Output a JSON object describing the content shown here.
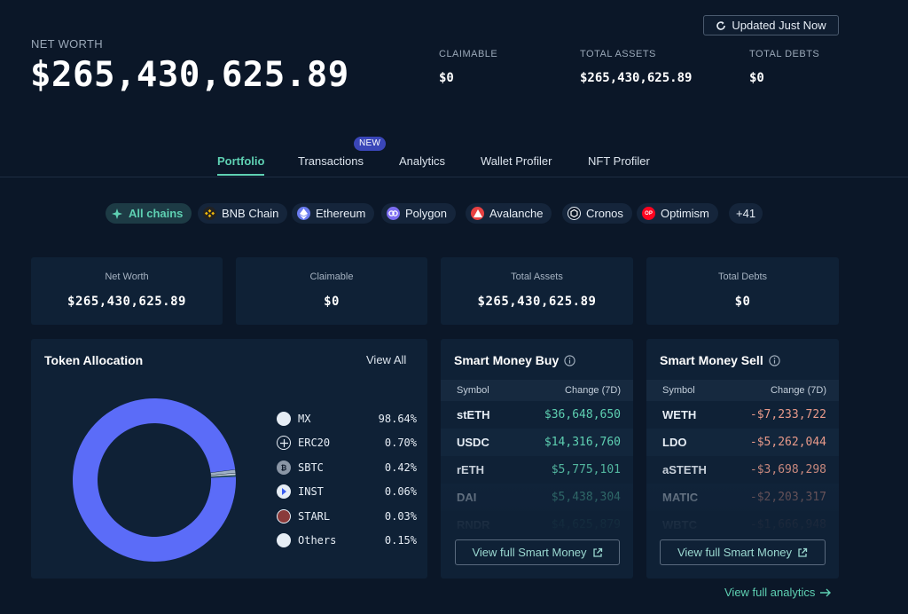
{
  "header": {
    "net_worth_label": "NET WORTH",
    "net_worth_value": "$265,430,625.89",
    "updated_label": "Updated Just Now",
    "stats": [
      {
        "label": "CLAIMABLE",
        "value": "$0"
      },
      {
        "label": "TOTAL ASSETS",
        "value": "$265,430,625.89"
      },
      {
        "label": "TOTAL DEBTS",
        "value": "$0"
      }
    ]
  },
  "tabs": {
    "items": [
      "Portfolio",
      "Transactions",
      "Analytics",
      "Wallet Profiler",
      "NFT Profiler"
    ],
    "active": "Portfolio",
    "new_badge": "NEW"
  },
  "chains": {
    "items": [
      "All chains",
      "BNB Chain",
      "Ethereum",
      "Polygon",
      "Avalanche",
      "Cronos",
      "Optimism"
    ],
    "more": "+41",
    "colors": {
      "all": "#5ed0b2",
      "bnb": "#f0b90b",
      "ethereum": "#6b7cf0",
      "polygon": "#7b6cf0",
      "avalanche": "#e84142",
      "cronos": "#0b1728",
      "optimism": "#ff0420"
    }
  },
  "summary": [
    {
      "label": "Net Worth",
      "value": "$265,430,625.89"
    },
    {
      "label": "Claimable",
      "value": "$0"
    },
    {
      "label": "Total Assets",
      "value": "$265,430,625.89"
    },
    {
      "label": "Total Debts",
      "value": "$0"
    }
  ],
  "allocation": {
    "title": "Token Allocation",
    "view_all": "View All",
    "main_color": "#5b6cf8",
    "tokens": [
      {
        "symbol": "MX",
        "pct": "98.64%",
        "value": 98.64
      },
      {
        "symbol": "ERC20",
        "pct": "0.70%",
        "value": 0.7
      },
      {
        "symbol": "SBTC",
        "pct": "0.42%",
        "value": 0.42
      },
      {
        "symbol": "INST",
        "pct": "0.06%",
        "value": 0.06
      },
      {
        "symbol": "STARL",
        "pct": "0.03%",
        "value": 0.03
      },
      {
        "symbol": "Others",
        "pct": "0.15%",
        "value": 0.15
      }
    ]
  },
  "smart_buy": {
    "title": "Smart Money Buy",
    "col_symbol": "Symbol",
    "col_change": "Change (7D)",
    "positive_color": "#5ed0b2",
    "rows": [
      {
        "symbol": "stETH",
        "change": "$36,648,650"
      },
      {
        "symbol": "USDC",
        "change": "$14,316,760"
      },
      {
        "symbol": "rETH",
        "change": "$5,775,101"
      },
      {
        "symbol": "DAI",
        "change": "$5,438,304"
      },
      {
        "symbol": "RNDR",
        "change": "$4,625,879"
      }
    ],
    "button": "View full Smart Money"
  },
  "smart_sell": {
    "title": "Smart Money Sell",
    "col_symbol": "Symbol",
    "col_change": "Change (7D)",
    "negative_color": "#e89a8a",
    "rows": [
      {
        "symbol": "WETH",
        "change": "-$7,233,722"
      },
      {
        "symbol": "LDO",
        "change": "-$5,262,044"
      },
      {
        "symbol": "aSTETH",
        "change": "-$3,698,298"
      },
      {
        "symbol": "MATIC",
        "change": "-$2,203,317"
      },
      {
        "symbol": "WBTC",
        "change": "-$1,666,948"
      }
    ],
    "button": "View full Smart Money"
  },
  "footer": {
    "full_analytics": "View full analytics"
  }
}
